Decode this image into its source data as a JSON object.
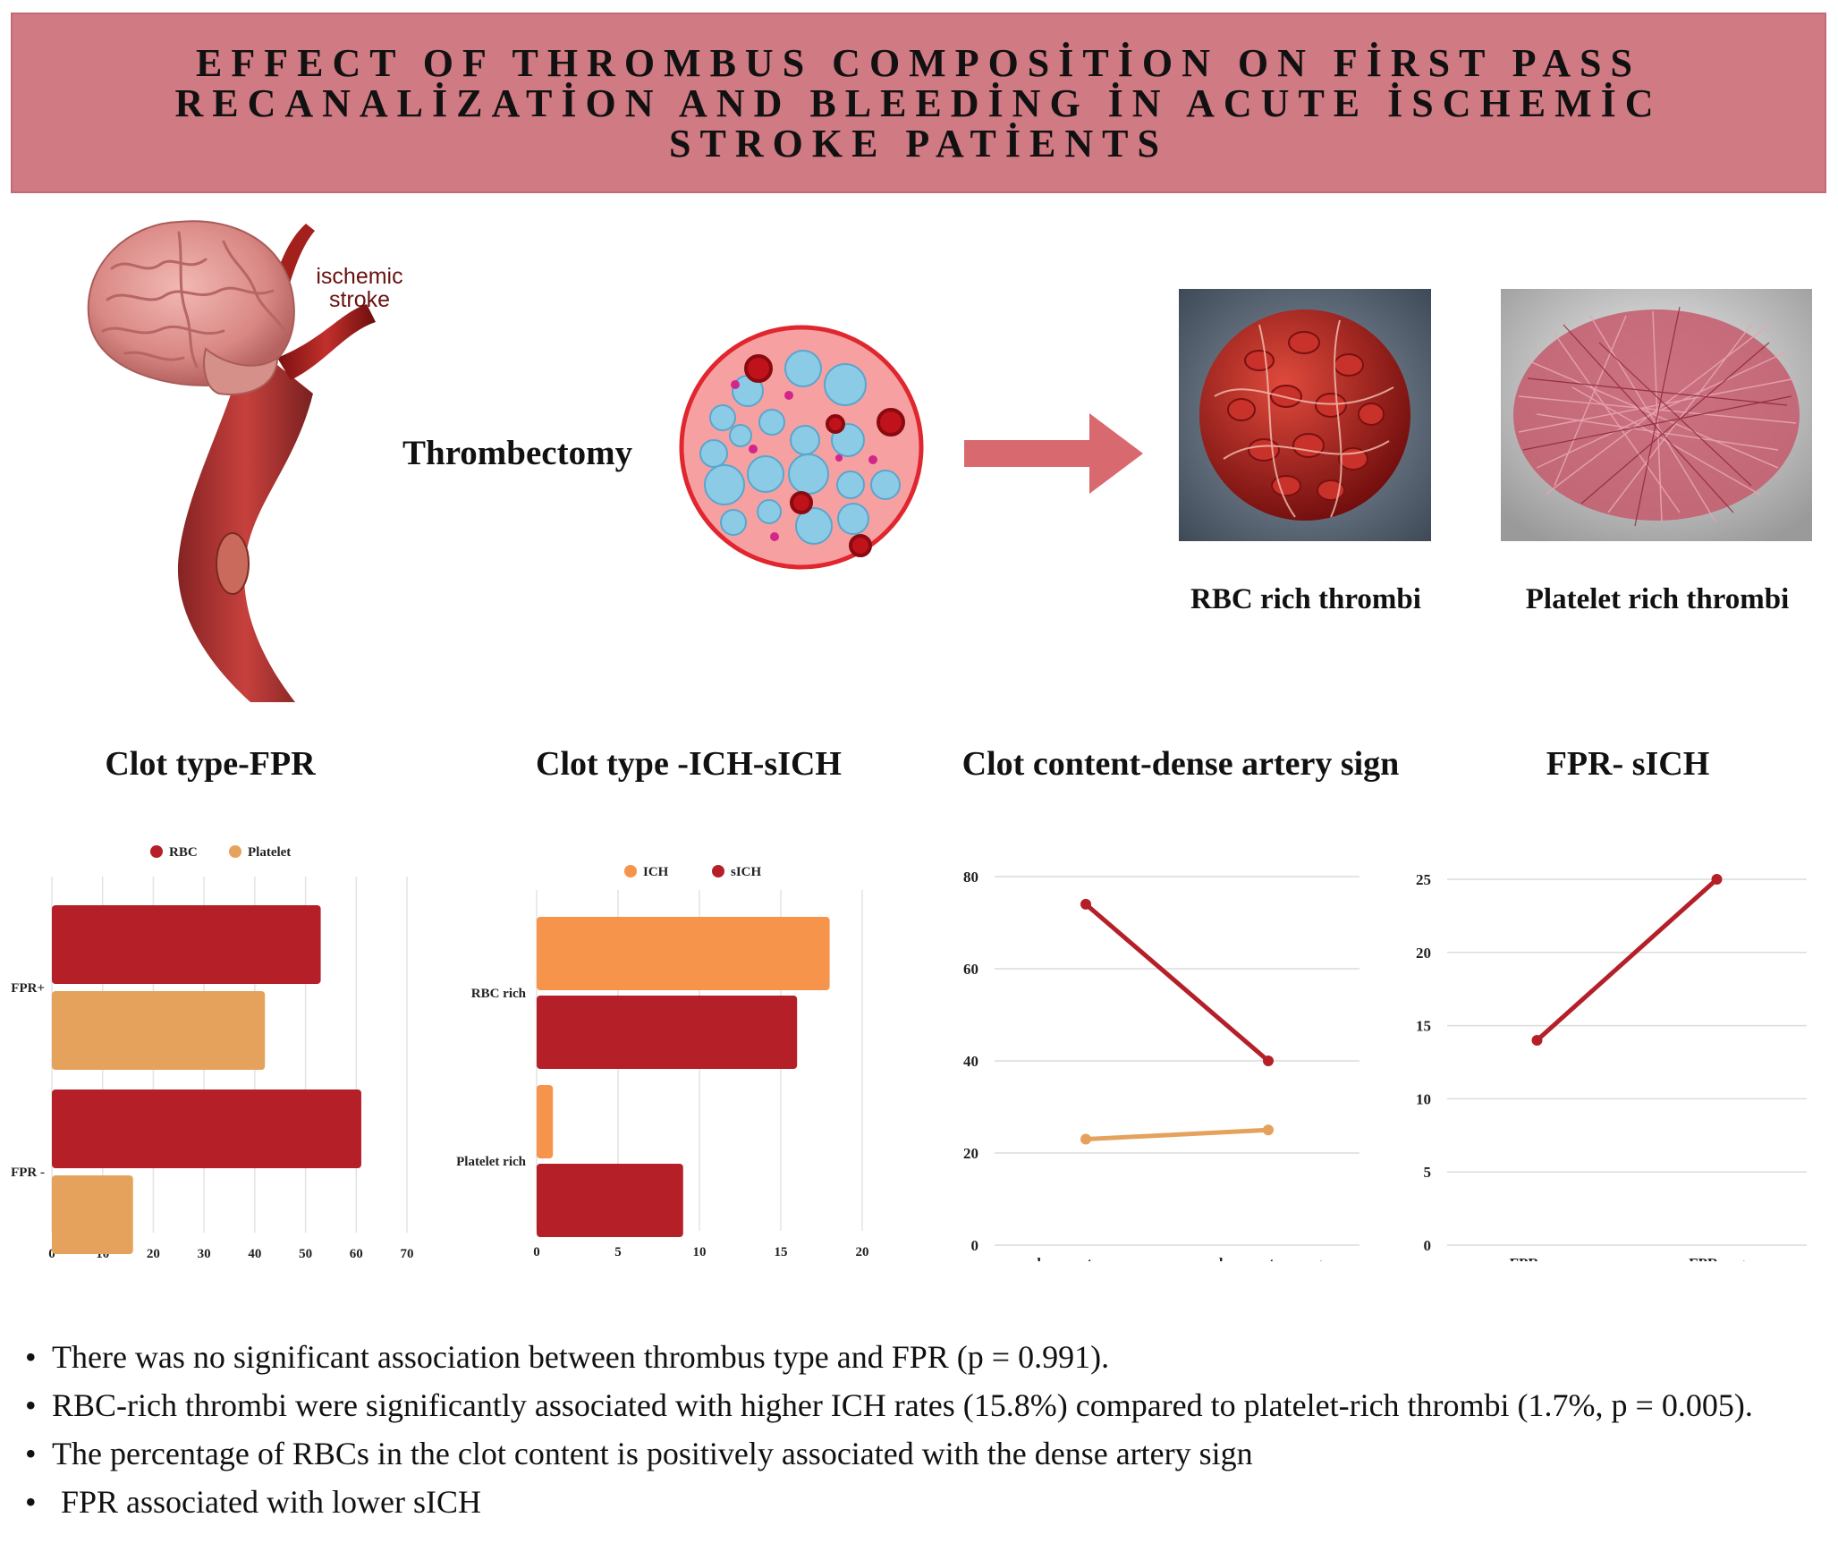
{
  "title": "EFFECT OF THROMBUS COMPOSİTİON ON FİRST PASS RECANALİZATİON AND BLEEDİNG İN ACUTE İSCHEMİC STROKE PATİENTS",
  "illustration": {
    "stroke_label_line1": "ischemic",
    "stroke_label_line2": "stroke",
    "procedure_label": "Thrombectomy",
    "rbc_label": "RBC rich thrombi",
    "platelet_label": "Platelet rich thrombi"
  },
  "colors": {
    "banner": "#d07a84",
    "red_series": "#b41f28",
    "orange_series": "#e5a25c",
    "ich_orange": "#f5944a"
  },
  "chart_data": [
    {
      "type": "bar",
      "orientation": "horizontal",
      "title": "Clot type-FPR",
      "categories": [
        "FPR+",
        "FPR -"
      ],
      "series": [
        {
          "name": "RBC",
          "values": [
            53,
            61
          ],
          "color": "#b41f28"
        },
        {
          "name": "Platelet",
          "values": [
            42,
            16
          ],
          "color": "#e5a25c"
        }
      ],
      "xlim": [
        0,
        70
      ],
      "xticks": [
        "0",
        "10",
        "20",
        "30",
        "40",
        "50",
        "60",
        "70"
      ],
      "legend": "top",
      "grid": true
    },
    {
      "type": "bar",
      "orientation": "horizontal",
      "title": "Clot type -ICH-sICH",
      "categories": [
        "RBC rich",
        "Platelet rich"
      ],
      "series": [
        {
          "name": "ICH",
          "values": [
            18,
            1
          ],
          "color": "#f5944a"
        },
        {
          "name": "sICH",
          "values": [
            16,
            9
          ],
          "color": "#b41f28"
        }
      ],
      "xlim": [
        0,
        20
      ],
      "xticks": [
        "0",
        "5",
        "10",
        "15",
        "20"
      ],
      "legend": "top",
      "grid": true
    },
    {
      "type": "line",
      "title": "Clot content-dense artery sign",
      "categories": [
        "dense artery pos",
        "dense artery neg"
      ],
      "series": [
        {
          "values": [
            74,
            40
          ],
          "color": "#b41f28"
        },
        {
          "values": [
            23,
            25
          ],
          "color": "#e5a25c"
        }
      ],
      "ylim": [
        0,
        80
      ],
      "yticks": [
        "0",
        "20",
        "40",
        "60",
        "80"
      ],
      "grid": true
    },
    {
      "type": "line",
      "title": "FPR- sICH",
      "categories": [
        "FPR pos",
        "FPR neg"
      ],
      "series": [
        {
          "values": [
            14,
            25
          ],
          "color": "#b41f28"
        }
      ],
      "ylim": [
        0,
        25
      ],
      "yticks": [
        "0",
        "5",
        "10",
        "15",
        "20",
        "25"
      ],
      "grid": true
    }
  ],
  "findings": [
    "There was no significant association between thrombus type and FPR (p = 0.991).",
    "RBC-rich thrombi were significantly associated with higher ICH rates (15.8%) compared to platelet-rich thrombi (1.7%, p = 0.005).",
    "The percentage of RBCs in the clot content is positively associated with the dense artery sign",
    "FPR associated with lower sICH"
  ]
}
